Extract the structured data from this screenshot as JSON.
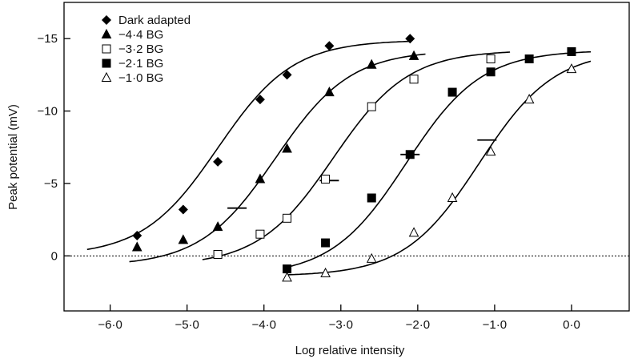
{
  "chart_data": {
    "type": "scatter",
    "xlabel": "Log relative intensity",
    "ylabel": "Peak potential (mV)",
    "xlim": [
      -6.6,
      0.75
    ],
    "ylim": [
      -17.5,
      3.8
    ],
    "y_inverted": true,
    "x_ticks": [
      {
        "value": -6.0,
        "label": "-6·0"
      },
      {
        "value": -5.0,
        "label": "-5·0"
      },
      {
        "value": -4.0,
        "label": "-4·0"
      },
      {
        "value": -3.0,
        "label": "-3·0"
      },
      {
        "value": -2.0,
        "label": "-2·0"
      },
      {
        "value": -1.0,
        "label": "-1·0"
      },
      {
        "value": 0.0,
        "label": "0·0"
      }
    ],
    "y_ticks": [
      {
        "value": -15,
        "label": "-15"
      },
      {
        "value": -10,
        "label": "-10"
      },
      {
        "value": -5,
        "label": "-5"
      },
      {
        "value": 0,
        "label": "0"
      }
    ],
    "zero_line": {
      "value": 0,
      "style": "dotted"
    },
    "legend_position": "top-left",
    "series": [
      {
        "name": "Dark adapted",
        "marker": "diamond",
        "points": [
          [
            -5.65,
            -1.4
          ],
          [
            -5.05,
            -3.2
          ],
          [
            -4.6,
            -6.5
          ],
          [
            -4.05,
            -10.8
          ],
          [
            -3.7,
            -12.5
          ],
          [
            -3.15,
            -14.5
          ],
          [
            -2.1,
            -15.0
          ]
        ],
        "curve": {
          "x0": -6.3,
          "x1": -2.1,
          "bottom": 0.0,
          "top": -14.9,
          "mid": -4.6,
          "k": 2.05
        },
        "half_max_mark": null
      },
      {
        "name": "−4·4 BG",
        "marker": "triangle-filled",
        "points": [
          [
            -5.65,
            -0.6
          ],
          [
            -5.05,
            -1.1
          ],
          [
            -4.6,
            -2.0
          ],
          [
            -4.05,
            -5.3
          ],
          [
            -3.7,
            -7.4
          ],
          [
            -3.15,
            -11.3
          ],
          [
            -2.6,
            -13.2
          ],
          [
            -2.05,
            -13.8
          ]
        ],
        "curve": {
          "x0": -5.75,
          "x1": -1.9,
          "bottom": 0.7,
          "top": -14.2,
          "mid": -3.85,
          "k": 2.05
        },
        "half_max_mark": {
          "x": -4.35,
          "y": -3.3
        }
      },
      {
        "name": "−3·2 BG",
        "marker": "square-open",
        "points": [
          [
            -4.6,
            -0.1
          ],
          [
            -4.05,
            -1.5
          ],
          [
            -3.7,
            -2.6
          ],
          [
            -3.2,
            -5.3
          ],
          [
            -2.6,
            -10.3
          ],
          [
            -2.05,
            -12.2
          ],
          [
            -1.05,
            -13.6
          ]
        ],
        "curve": {
          "x0": -4.8,
          "x1": -0.8,
          "bottom": 0.7,
          "top": -14.2,
          "mid": -3.1,
          "k": 2.05
        },
        "half_max_mark": {
          "x": -3.15,
          "y": -5.2
        }
      },
      {
        "name": "−2·1 BG",
        "marker": "square-filled",
        "points": [
          [
            -3.7,
            0.9
          ],
          [
            -3.2,
            -0.9
          ],
          [
            -2.6,
            -4.0
          ],
          [
            -2.1,
            -7.0
          ],
          [
            -1.55,
            -11.3
          ],
          [
            -1.05,
            -12.7
          ],
          [
            -0.55,
            -13.6
          ],
          [
            0.0,
            -14.1
          ]
        ],
        "curve": {
          "x0": -3.7,
          "x1": 0.25,
          "bottom": 1.4,
          "top": -14.2,
          "mid": -2.15,
          "k": 2.05
        },
        "half_max_mark": {
          "x": -2.1,
          "y": -7.0
        }
      },
      {
        "name": "−1·0 BG",
        "marker": "triangle-open",
        "points": [
          [
            -3.7,
            1.5
          ],
          [
            -3.2,
            1.2
          ],
          [
            -2.6,
            0.2
          ],
          [
            -2.05,
            -1.6
          ],
          [
            -1.55,
            -4.0
          ],
          [
            -1.05,
            -7.2
          ],
          [
            -0.55,
            -10.8
          ],
          [
            0.0,
            -12.9
          ]
        ],
        "curve": {
          "x0": -3.7,
          "x1": 0.25,
          "bottom": 1.4,
          "top": -14.2,
          "mid": -1.2,
          "k": 2.05
        },
        "half_max_mark": {
          "x": -1.1,
          "y": -8.0
        }
      }
    ]
  }
}
